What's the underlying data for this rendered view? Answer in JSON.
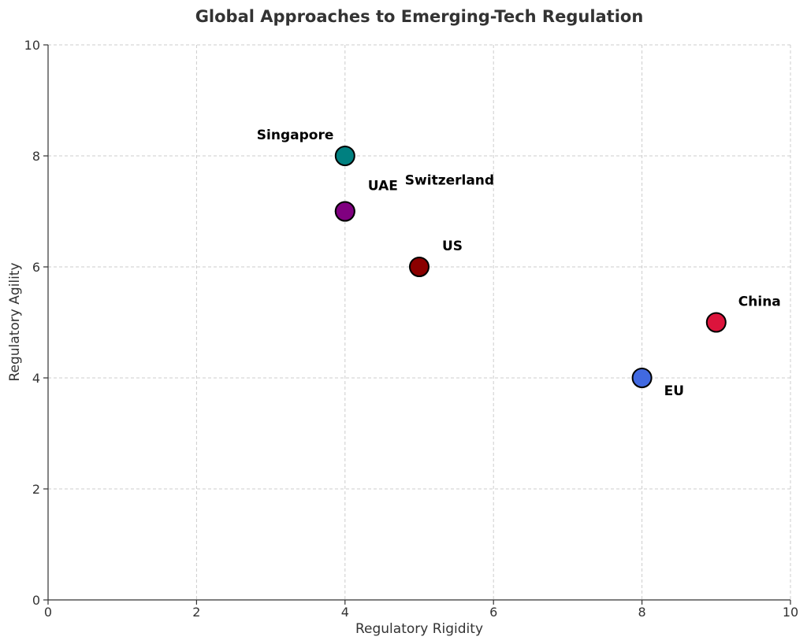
{
  "chart_data": {
    "type": "scatter",
    "title": "Global Approaches to Emerging-Tech Regulation",
    "xlabel": "Regulatory Rigidity",
    "ylabel": "Regulatory Agility",
    "xlim": [
      0,
      10
    ],
    "ylim": [
      0,
      10
    ],
    "xticks": [
      "0",
      "2",
      "4",
      "6",
      "8",
      "10"
    ],
    "yticks": [
      "0",
      "2",
      "4",
      "6",
      "8",
      "10"
    ],
    "grid": true,
    "points": [
      {
        "name": "Singapore",
        "label": "Singapore",
        "x": 4,
        "y": 8,
        "color": "#008080"
      },
      {
        "name": "UAE",
        "label": "UAE",
        "x": 4,
        "y": 7,
        "color": "#800080"
      },
      {
        "name": "Switzerland",
        "label": "Switzerland",
        "x": 4,
        "y": 7,
        "color": "#800080"
      },
      {
        "name": "US",
        "label": "US",
        "x": 5,
        "y": 6,
        "color": "#8B0000"
      },
      {
        "name": "China",
        "label": "China",
        "x": 9,
        "y": 5,
        "color": "#DC143C"
      },
      {
        "name": "EU",
        "label": "EU",
        "x": 8,
        "y": 4,
        "color": "#4169E1"
      }
    ]
  }
}
